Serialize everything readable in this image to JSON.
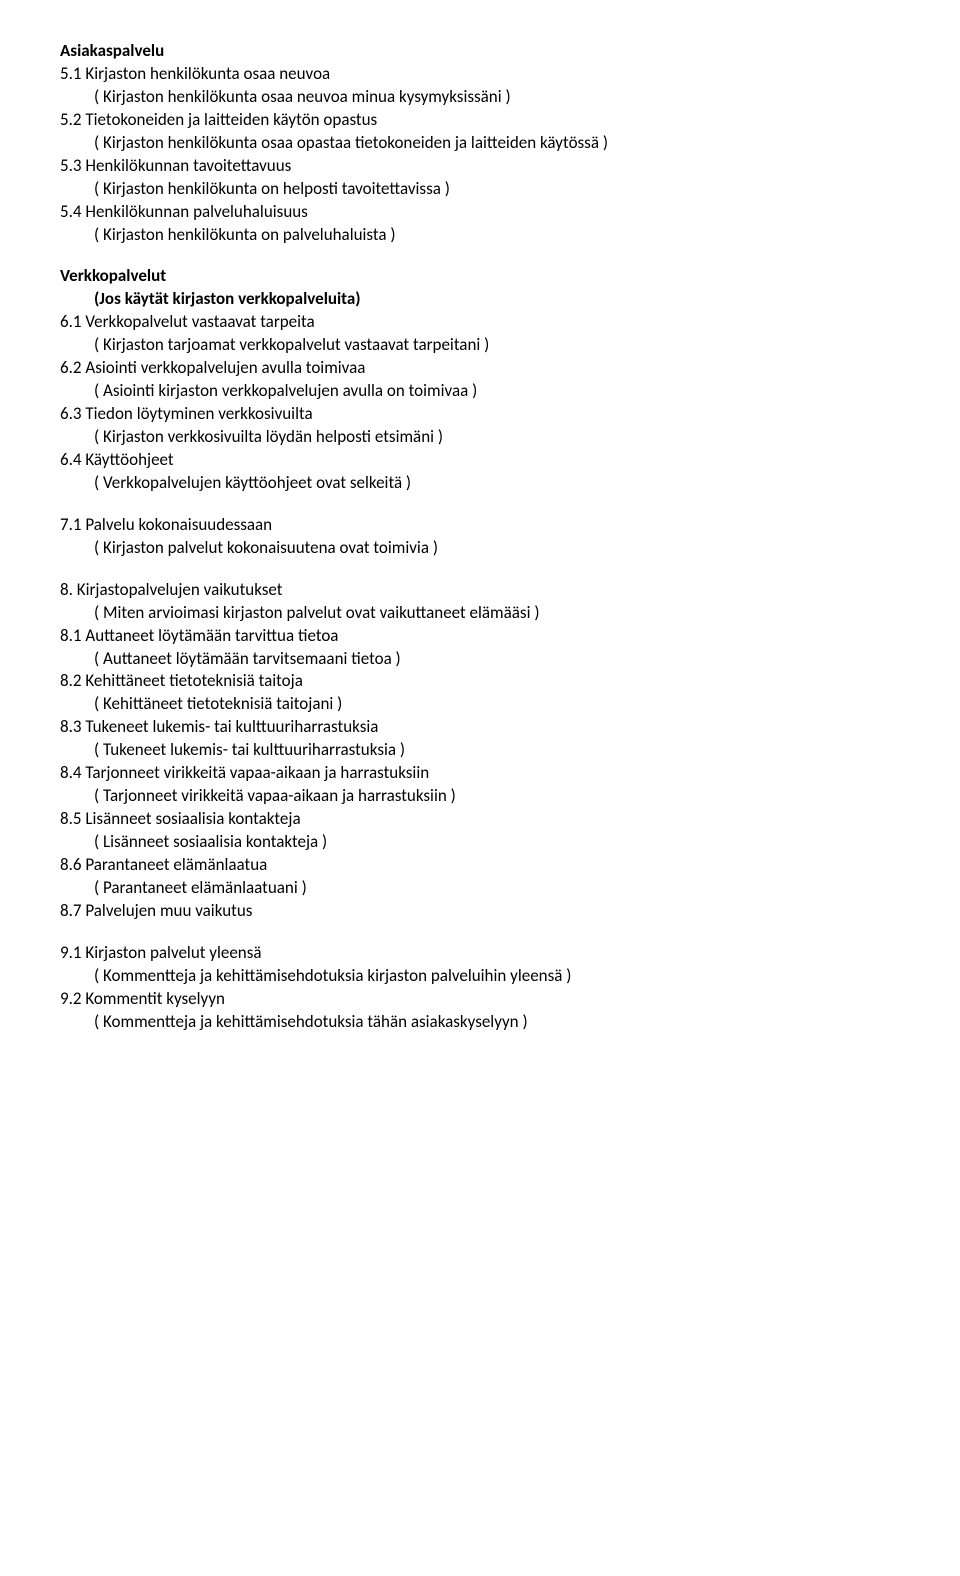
{
  "s1": {
    "title": "Asiakaspalvelu",
    "items": [
      {
        "num": "5.1",
        "label": "Kirjaston henkilökunta osaa neuvoa",
        "sub": "( Kirjaston henkilökunta osaa neuvoa minua kysymyksissäni )"
      },
      {
        "num": "5.2",
        "label": "Tietokoneiden ja laitteiden käytön opastus",
        "sub": "( Kirjaston henkilökunta osaa opastaa tietokoneiden ja laitteiden käytössä )"
      },
      {
        "num": "5.3",
        "label": "Henkilökunnan tavoitettavuus",
        "sub": "( Kirjaston henkilökunta on helposti tavoitettavissa )"
      },
      {
        "num": "5.4",
        "label": "Henkilökunnan palveluhaluisuus",
        "sub": "( Kirjaston henkilökunta on palveluhaluista )"
      }
    ]
  },
  "s2": {
    "title": "Verkkopalvelut",
    "subtitle": "(Jos käytät kirjaston verkkopalveluita)",
    "items": [
      {
        "num": "6.1",
        "label": "Verkkopalvelut vastaavat tarpeita",
        "sub": "( Kirjaston tarjoamat verkkopalvelut vastaavat tarpeitani )"
      },
      {
        "num": "6.2",
        "label": "Asiointi verkkopalvelujen avulla toimivaa",
        "sub": "( Asiointi kirjaston verkkopalvelujen avulla on toimivaa )"
      },
      {
        "num": "6.3",
        "label": "Tiedon löytyminen verkkosivuilta",
        "sub": "( Kirjaston verkkosivuilta löydän helposti etsimäni )"
      },
      {
        "num": "6.4",
        "label": "Käyttöohjeet",
        "sub": "( Verkkopalvelujen käyttöohjeet ovat selkeitä )"
      }
    ]
  },
  "s3": {
    "items": [
      {
        "num": "7.1",
        "label": "Palvelu kokonaisuudessaan",
        "sub": "( Kirjaston palvelut kokonaisuutena ovat toimivia )"
      }
    ]
  },
  "s4": {
    "head": {
      "num": "8.",
      "label": "Kirjastopalvelujen vaikutukset",
      "sub": "( Miten arvioimasi kirjaston palvelut ovat vaikuttaneet elämääsi )"
    },
    "items": [
      {
        "num": "8.1",
        "label": "Auttaneet löytämään tarvittua tietoa",
        "sub": "( Auttaneet löytämään tarvitsemaani tietoa )"
      },
      {
        "num": "8.2",
        "label": "Kehittäneet tietoteknisiä taitoja",
        "sub": "( Kehittäneet tietoteknisiä taitojani )"
      },
      {
        "num": "8.3",
        "label": "Tukeneet lukemis- tai kulttuuriharrastuksia",
        "sub": "( Tukeneet lukemis- tai kulttuuriharrastuksia  )"
      },
      {
        "num": "8.4",
        "label": "Tarjonneet virikkeitä vapaa-aikaan ja harrastuksiin",
        "sub": "( Tarjonneet virikkeitä vapaa-aikaan ja harrastuksiin  )"
      },
      {
        "num": "8.5",
        "label": "Lisänneet sosiaalisia kontakteja",
        "sub": "( Lisänneet sosiaalisia kontakteja  )"
      },
      {
        "num": "8.6",
        "label": "Parantaneet elämänlaatua",
        "sub": "( Parantaneet elämänlaatuani  )"
      },
      {
        "num": "8.7",
        "label": "Palvelujen muu vaikutus",
        "sub": null
      }
    ]
  },
  "s5": {
    "items": [
      {
        "num": "9.1",
        "label": "Kirjaston palvelut yleensä",
        "sub": "( Kommentteja ja kehittämisehdotuksia kirjaston palveluihin yleensä )"
      },
      {
        "num": "9.2",
        "label": "Kommentit kyselyyn",
        "sub": "( Kommentteja ja kehittämisehdotuksia tähän asiakaskyselyyn )"
      }
    ]
  }
}
